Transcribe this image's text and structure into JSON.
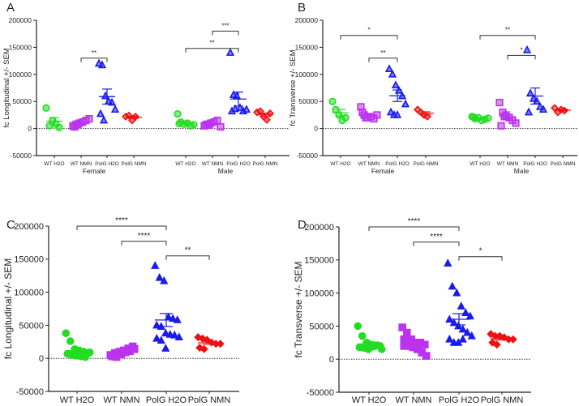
{
  "chart_data": [
    {
      "panel": "A",
      "type": "scatter",
      "ylabel": "fc Longitudinal +/- SEM",
      "ylim": [
        -50000,
        200000
      ],
      "yticks": [
        "-50000",
        "0",
        "50000",
        "100000",
        "150000",
        "200000"
      ],
      "groups": [
        "Female",
        "Male"
      ],
      "categories": [
        "WT H2O",
        "WT NMN",
        "PolG H2O",
        "PolG NMN"
      ],
      "series": [
        {
          "group": "Female",
          "values": [
            [
              38000,
              5000,
              15000,
              8000,
              2000
            ],
            [
              5000,
              8000,
              10000,
              12000,
              15000,
              18000,
              3000,
              7000
            ],
            [
              120000,
              117000,
              60000,
              50000,
              48000,
              35000,
              27000,
              15000
            ],
            [
              22000,
              24000,
              15000,
              22000
            ]
          ]
        },
        {
          "group": "Male",
          "values": [
            [
              27000,
              12000,
              8000,
              10000,
              5000,
              7000,
              9000
            ],
            [
              5000,
              8000,
              10000,
              12000,
              15000,
              3000,
              7000,
              6000
            ],
            [
              140000,
              62000,
              60000,
              38000,
              32000,
              35000,
              32000,
              36000
            ],
            [
              30000,
              32000,
              22000,
              16000,
              28000
            ]
          ]
        }
      ],
      "significance": [
        {
          "group": 0,
          "from": 1,
          "to": 2,
          "y": 130000,
          "label": "**"
        },
        {
          "group": 1,
          "from": 0,
          "to": 2,
          "y": 148000,
          "label": "**"
        },
        {
          "group": 1,
          "from": 1,
          "to": 2,
          "y": 180000,
          "label": "***"
        }
      ]
    },
    {
      "panel": "B",
      "type": "scatter",
      "ylabel": "fc Transverse +/- SEM",
      "ylim": [
        -50000,
        200000
      ],
      "yticks": [
        "-50000",
        "0",
        "50000",
        "100000",
        "150000",
        "200000"
      ],
      "groups": [
        "Female",
        "Male"
      ],
      "categories": [
        "WT H2O",
        "WT NMN",
        "PolG H2O",
        "PolG NMN"
      ],
      "series": [
        {
          "group": "Female",
          "values": [
            [
              50000,
              35000,
              25000,
              15000,
              20000
            ],
            [
              40000,
              25000,
              20000,
              22000,
              18000,
              25000,
              30000,
              20000
            ],
            [
              110000,
              100000,
              80000,
              70000,
              60000,
              45000,
              30000,
              25000,
              25000
            ],
            [
              35000,
              30000,
              25000,
              22000
            ]
          ]
        },
        {
          "group": "Male",
          "values": [
            [
              22000,
              18000,
              20000,
              15000,
              17000,
              19000,
              21000
            ],
            [
              48000,
              30000,
              25000,
              20000,
              15000,
              10000,
              5000,
              22000
            ],
            [
              145000,
              65000,
              55000,
              50000,
              40000,
              35000,
              30000
            ],
            [
              38000,
              30000,
              35000,
              33000
            ]
          ]
        }
      ],
      "significance": [
        {
          "group": 0,
          "from": 0,
          "to": 2,
          "y": 172000,
          "label": "*"
        },
        {
          "group": 0,
          "from": 1,
          "to": 2,
          "y": 130000,
          "label": "**"
        },
        {
          "group": 1,
          "from": 0,
          "to": 2,
          "y": 172000,
          "label": "**"
        },
        {
          "group": 1,
          "from": 1,
          "to": 2,
          "y": 135000,
          "label": "*"
        }
      ]
    },
    {
      "panel": "C",
      "type": "scatter",
      "ylabel": "fc Longitudinal +/- SEM",
      "ylim": [
        -50000,
        200000
      ],
      "yticks": [
        "-50000",
        "0",
        "50000",
        "100000",
        "150000",
        "200000"
      ],
      "groups": [
        ""
      ],
      "categories": [
        "WT H2O",
        "WT NMN",
        "PolG H2O",
        "PolG NMN"
      ],
      "series": [
        {
          "group": "",
          "values": [
            [
              38000,
              26000,
              14000,
              12000,
              10000,
              8000,
              7000,
              5000,
              4000,
              3000,
              2000,
              9000
            ],
            [
              5000,
              8000,
              10000,
              12000,
              15000,
              18000,
              3000,
              7000,
              6000,
              9000,
              11000,
              14000,
              4000,
              2000,
              8000
            ],
            [
              140000,
              122000,
              117000,
              62000,
              60000,
              58000,
              50000,
              48000,
              38000,
              36000,
              35000,
              32000,
              30000,
              27000,
              15000
            ],
            [
              32000,
              30000,
              28000,
              24000,
              22000,
              22000,
              16000,
              14000
            ]
          ]
        }
      ],
      "significance": [
        {
          "group": 0,
          "from": 0,
          "to": 2,
          "y": 200000,
          "label": "****"
        },
        {
          "group": 0,
          "from": 1,
          "to": 2,
          "y": 177000,
          "label": "****"
        },
        {
          "group": 0,
          "from": 2,
          "to": 3,
          "y": 155000,
          "label": "**"
        }
      ]
    },
    {
      "panel": "D",
      "type": "scatter",
      "ylabel": "fc Transverse +/- SEM",
      "ylim": [
        -50000,
        200000
      ],
      "yticks": [
        "-50000",
        "0",
        "50000",
        "100000",
        "150000",
        "200000"
      ],
      "groups": [
        ""
      ],
      "categories": [
        "WT H2O",
        "WT NMN",
        "PolG H2O",
        "PolG NMN"
      ],
      "series": [
        {
          "group": "",
          "values": [
            [
              50000,
              35000,
              25000,
              22000,
              20000,
              20000,
              18000,
              17000,
              15000,
              19000,
              21000,
              15000
            ],
            [
              48000,
              40000,
              30000,
              25000,
              25000,
              22000,
              20000,
              20000,
              18000,
              15000,
              10000,
              5000,
              30000,
              22000,
              25000
            ],
            [
              145000,
              110000,
              100000,
              80000,
              70000,
              65000,
              60000,
              55000,
              50000,
              45000,
              40000,
              35000,
              30000,
              25000,
              25000,
              30000
            ],
            [
              38000,
              35000,
              35000,
              33000,
              30000,
              30000,
              25000,
              22000
            ]
          ]
        }
      ],
      "significance": [
        {
          "group": 0,
          "from": 0,
          "to": 2,
          "y": 200000,
          "label": "****"
        },
        {
          "group": 0,
          "from": 1,
          "to": 2,
          "y": 177000,
          "label": "****"
        },
        {
          "group": 0,
          "from": 2,
          "to": 3,
          "y": 155000,
          "label": "*"
        }
      ]
    }
  ],
  "colors": [
    "#22dd22",
    "#bb33ee",
    "#1a1aee",
    "#ee1111"
  ],
  "markers": [
    "circle",
    "square",
    "triangle",
    "diamond"
  ]
}
